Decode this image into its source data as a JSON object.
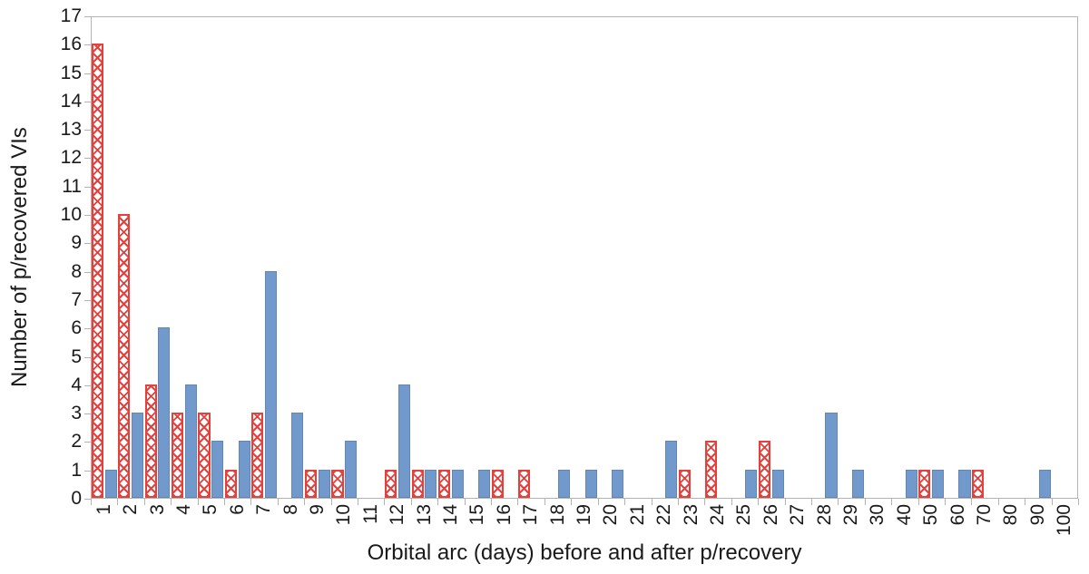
{
  "colors": {
    "bar_blue_fill": "#7299cb",
    "bar_blue_edge": "#6287b4",
    "bar_red": "#e6403c",
    "axis_line": "#b3b3b3",
    "label_text": "#1a1a1a",
    "background": "#ffffff"
  },
  "chart_data": {
    "type": "bar",
    "title": "",
    "xlabel": "Orbital arc (days) before and after p/recovery",
    "ylabel": "Number of p/recovered VIs",
    "ylim": [
      0,
      17
    ],
    "ytick_step": 1,
    "grid": false,
    "legend": "none",
    "categories": [
      "1",
      "2",
      "3",
      "4",
      "5",
      "6",
      "7",
      "8",
      "9",
      "10",
      "11",
      "12",
      "13",
      "14",
      "15",
      "16",
      "17",
      "18",
      "19",
      "20",
      "21",
      "22",
      "23",
      "24",
      "25",
      "26",
      "27",
      "28",
      "29",
      "30",
      "40",
      "50",
      "60",
      "70",
      "80",
      "90",
      "100"
    ],
    "series": [
      {
        "name": "red-hatched",
        "style": "white fill with red diagonal crosshatch and red border",
        "values": [
          16,
          10,
          4,
          3,
          3,
          1,
          3,
          0,
          1,
          1,
          0,
          1,
          1,
          1,
          0,
          1,
          1,
          0,
          0,
          0,
          0,
          0,
          1,
          2,
          0,
          2,
          0,
          0,
          0,
          0,
          0,
          1,
          0,
          1,
          0,
          0,
          0
        ]
      },
      {
        "name": "blue-solid",
        "style": "solid blue fill",
        "values": [
          1,
          3,
          6,
          4,
          2,
          2,
          8,
          3,
          1,
          2,
          0,
          4,
          1,
          1,
          1,
          0,
          0,
          1,
          1,
          1,
          0,
          2,
          0,
          0,
          1,
          1,
          0,
          3,
          1,
          0,
          1,
          1,
          1,
          0,
          0,
          1,
          0
        ]
      }
    ]
  }
}
